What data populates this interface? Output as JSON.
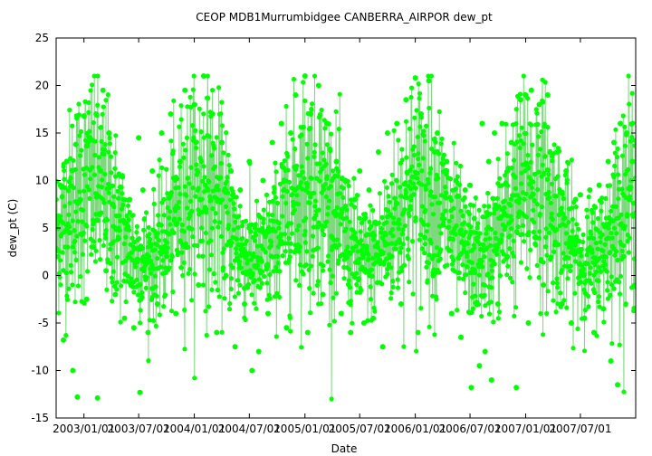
{
  "chart_data": {
    "type": "scatter",
    "title": "CEOP MDB1Murrumbidgee CANBERRA_AIRPOR  dew_pt",
    "xlabel": "Date",
    "ylabel": "dew_pt (C)",
    "ylim": [
      -15,
      25
    ],
    "yticks": [
      -15,
      -10,
      -5,
      0,
      5,
      10,
      15,
      20,
      25
    ],
    "xlim": [
      "2002-10-01",
      "2007-12-31"
    ],
    "xtick_dates": [
      "2003-01-01",
      "2003-07-01",
      "2004-01-01",
      "2004-07-01",
      "2005-01-01",
      "2005-07-01",
      "2006-01-01",
      "2006-07-01",
      "2007-01-01",
      "2007-07-01"
    ],
    "xtick_labels": [
      "2003/01/01",
      "2003/07/01",
      "2004/01/01",
      "2004/07/01",
      "2005/01/01",
      "2005/07/01",
      "2006/01/01",
      "2006/07/01",
      "2007/01/01",
      "2007/07/01"
    ],
    "grid": false,
    "marker_color": "#00ff00",
    "line_color": "#7fd87f",
    "series": [
      {
        "values": [
          [
            "2002-10-05",
            2.0
          ],
          [
            "2002-10-15",
            9.5
          ],
          [
            "2002-10-25",
            -6.8
          ],
          [
            "2002-11-05",
            12.0
          ],
          [
            "2002-11-15",
            4.5
          ],
          [
            "2002-11-25",
            -10.0
          ],
          [
            "2002-12-05",
            13.8
          ],
          [
            "2002-12-10",
            -12.8
          ],
          [
            "2002-12-20",
            8.0
          ],
          [
            "2003-01-01",
            16.8
          ],
          [
            "2003-01-10",
            -2.5
          ],
          [
            "2003-01-20",
            14.5
          ],
          [
            "2003-02-01",
            3.0
          ],
          [
            "2003-02-10",
            17.0
          ],
          [
            "2003-02-15",
            -12.9
          ],
          [
            "2003-02-25",
            11.0
          ],
          [
            "2003-03-05",
            19.5
          ],
          [
            "2003-03-15",
            0.5
          ],
          [
            "2003-03-25",
            15.0
          ],
          [
            "2003-04-05",
            7.5
          ],
          [
            "2003-04-15",
            -2.0
          ],
          [
            "2003-05-01",
            10.5
          ],
          [
            "2003-05-15",
            -4.5
          ],
          [
            "2003-06-01",
            8.0
          ],
          [
            "2003-06-15",
            -5.5
          ],
          [
            "2003-07-01",
            14.5
          ],
          [
            "2003-07-05",
            -12.3
          ],
          [
            "2003-07-15",
            9.0
          ],
          [
            "2003-08-01",
            -6.0
          ],
          [
            "2003-08-15",
            11.0
          ],
          [
            "2003-09-01",
            -3.0
          ],
          [
            "2003-09-15",
            15.0
          ],
          [
            "2003-10-01",
            2.0
          ],
          [
            "2003-10-15",
            17.0
          ],
          [
            "2003-11-01",
            -4.0
          ],
          [
            "2003-11-15",
            12.0
          ],
          [
            "2003-12-01",
            19.5
          ],
          [
            "2003-12-15",
            5.0
          ],
          [
            "2004-01-01",
            18.0
          ],
          [
            "2004-01-15",
            -1.0
          ],
          [
            "2004-02-01",
            21.0
          ],
          [
            "2004-02-15",
            9.0
          ],
          [
            "2004-03-01",
            17.0
          ],
          [
            "2004-03-15",
            -6.0
          ],
          [
            "2004-04-01",
            14.0
          ],
          [
            "2004-04-15",
            0.0
          ],
          [
            "2004-05-01",
            11.0
          ],
          [
            "2004-05-15",
            -7.5
          ],
          [
            "2004-06-01",
            9.0
          ],
          [
            "2004-06-15",
            -3.0
          ],
          [
            "2004-07-01",
            12.0
          ],
          [
            "2004-07-10",
            -10.0
          ],
          [
            "2004-07-20",
            5.0
          ],
          [
            "2004-08-01",
            -8.0
          ],
          [
            "2004-08-15",
            10.0
          ],
          [
            "2004-09-01",
            -4.0
          ],
          [
            "2004-09-15",
            14.0
          ],
          [
            "2004-10-01",
            2.0
          ],
          [
            "2004-10-15",
            16.0
          ],
          [
            "2004-11-01",
            -5.5
          ],
          [
            "2004-11-15",
            15.0
          ],
          [
            "2004-12-01",
            19.0
          ],
          [
            "2004-12-15",
            3.0
          ],
          [
            "2005-01-01",
            21.0
          ],
          [
            "2005-01-10",
            -6.0
          ],
          [
            "2005-01-20",
            17.0
          ],
          [
            "2005-02-01",
            6.0
          ],
          [
            "2005-02-15",
            20.0
          ],
          [
            "2005-03-01",
            -2.0
          ],
          [
            "2005-03-15",
            16.0
          ],
          [
            "2005-04-01",
            4.0
          ],
          [
            "2005-04-15",
            12.0
          ],
          [
            "2005-05-01",
            -4.0
          ],
          [
            "2005-05-15",
            10.0
          ],
          [
            "2005-06-01",
            -6.0
          ],
          [
            "2005-06-15",
            8.0
          ],
          [
            "2005-07-01",
            11.0
          ],
          [
            "2005-07-15",
            -5.0
          ],
          [
            "2005-08-01",
            9.0
          ],
          [
            "2005-08-15",
            -4.5
          ],
          [
            "2005-09-01",
            13.0
          ],
          [
            "2005-09-15",
            -7.5
          ],
          [
            "2005-10-01",
            15.0
          ],
          [
            "2005-10-15",
            2.0
          ],
          [
            "2005-11-01",
            16.0
          ],
          [
            "2005-11-15",
            -3.0
          ],
          [
            "2005-12-01",
            18.5
          ],
          [
            "2005-12-15",
            7.0
          ],
          [
            "2006-01-01",
            20.8
          ],
          [
            "2006-01-10",
            -6.0
          ],
          [
            "2006-01-20",
            17.0
          ],
          [
            "2006-02-01",
            4.0
          ],
          [
            "2006-02-15",
            20.5
          ],
          [
            "2006-03-01",
            0.0
          ],
          [
            "2006-03-15",
            15.0
          ],
          [
            "2006-04-01",
            6.0
          ],
          [
            "2006-04-15",
            12.0
          ],
          [
            "2006-05-01",
            -4.0
          ],
          [
            "2006-05-15",
            10.0
          ],
          [
            "2006-06-01",
            -6.5
          ],
          [
            "2006-06-15",
            9.0
          ],
          [
            "2006-07-01",
            9.5
          ],
          [
            "2006-07-05",
            -11.8
          ],
          [
            "2006-07-15",
            6.0
          ],
          [
            "2006-08-01",
            -9.5
          ],
          [
            "2006-08-10",
            16.0
          ],
          [
            "2006-08-20",
            -8.0
          ],
          [
            "2006-09-01",
            12.0
          ],
          [
            "2006-09-10",
            -11.0
          ],
          [
            "2006-09-20",
            15.0
          ],
          [
            "2006-10-01",
            -3.0
          ],
          [
            "2006-10-15",
            16.0
          ],
          [
            "2006-11-01",
            2.0
          ],
          [
            "2006-11-15",
            14.0
          ],
          [
            "2006-12-01",
            -11.8
          ],
          [
            "2006-12-15",
            18.5
          ],
          [
            "2007-01-01",
            19.0
          ],
          [
            "2007-01-10",
            -5.0
          ],
          [
            "2007-01-20",
            19.5
          ],
          [
            "2007-02-01",
            4.0
          ],
          [
            "2007-02-15",
            18.0
          ],
          [
            "2007-03-01",
            -1.0
          ],
          [
            "2007-03-15",
            19.0
          ],
          [
            "2007-04-01",
            5.0
          ],
          [
            "2007-04-15",
            13.0
          ],
          [
            "2007-05-01",
            -3.0
          ],
          [
            "2007-05-15",
            11.0
          ],
          [
            "2007-06-01",
            -5.0
          ],
          [
            "2007-06-15",
            8.0
          ],
          [
            "2007-07-01",
            8.5
          ],
          [
            "2007-07-15",
            -4.5
          ],
          [
            "2007-08-01",
            9.0
          ],
          [
            "2007-08-15",
            -6.0
          ],
          [
            "2007-09-01",
            9.5
          ],
          [
            "2007-09-15",
            -3.5
          ],
          [
            "2007-10-01",
            12.0
          ],
          [
            "2007-10-10",
            -9.0
          ],
          [
            "2007-10-20",
            14.0
          ],
          [
            "2007-11-01",
            -11.5
          ],
          [
            "2007-11-10",
            16.0
          ],
          [
            "2007-11-20",
            2.0
          ],
          [
            "2007-12-01",
            15.0
          ],
          [
            "2007-12-10",
            8.0
          ],
          [
            "2007-12-20",
            12.0
          ]
        ]
      }
    ]
  }
}
